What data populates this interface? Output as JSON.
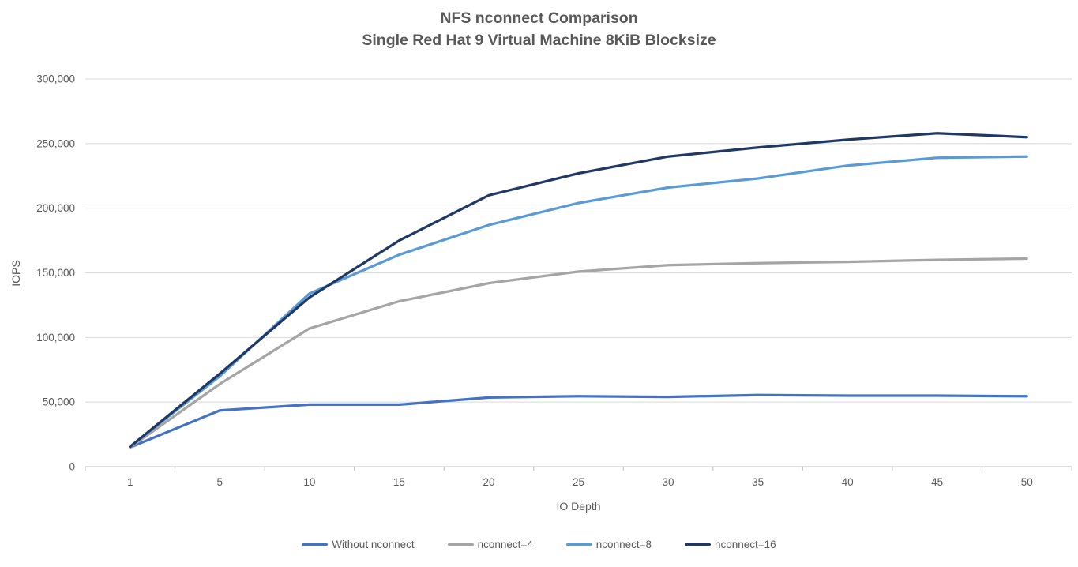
{
  "chart_data": {
    "type": "line",
    "title": "NFS nconnect Comparison",
    "subtitle": "Single Red Hat 9 Virtual Machine 8KiB Blocksize",
    "xlabel": "IO Depth",
    "ylabel": "IOPS",
    "categories": [
      1,
      5,
      10,
      15,
      20,
      25,
      30,
      35,
      40,
      45,
      50
    ],
    "series": [
      {
        "name": "Without nconnect",
        "color": "#4472C4",
        "values": [
          15000,
          43500,
          48000,
          48000,
          53500,
          54500,
          54000,
          55500,
          55000,
          55000,
          54500
        ]
      },
      {
        "name": "nconnect=4",
        "color": "#A5A5A5",
        "values": [
          15000,
          64000,
          107000,
          128000,
          142000,
          151000,
          156000,
          157500,
          158500,
          160000,
          161000
        ]
      },
      {
        "name": "nconnect=8",
        "color": "#5B9BD5",
        "values": [
          15500,
          70000,
          134000,
          164000,
          187000,
          204000,
          216000,
          223000,
          233000,
          239000,
          240000
        ]
      },
      {
        "name": "nconnect=16",
        "color": "#1F3864",
        "values": [
          15500,
          72000,
          131000,
          175000,
          210000,
          227000,
          240000,
          247000,
          253000,
          258000,
          255000
        ]
      }
    ],
    "ylim": [
      0,
      300000
    ],
    "y_tick_step": 50000,
    "y_tick_labels": [
      "0",
      "50,000",
      "100,000",
      "150,000",
      "200,000",
      "250,000",
      "300,000"
    ],
    "grid": true,
    "legend_position": "bottom"
  },
  "styles": {
    "background": "#FFFFFF",
    "text_color": "#595959",
    "gridline_color": "#D9D9D9",
    "axis_color": "#BFBFBF"
  }
}
